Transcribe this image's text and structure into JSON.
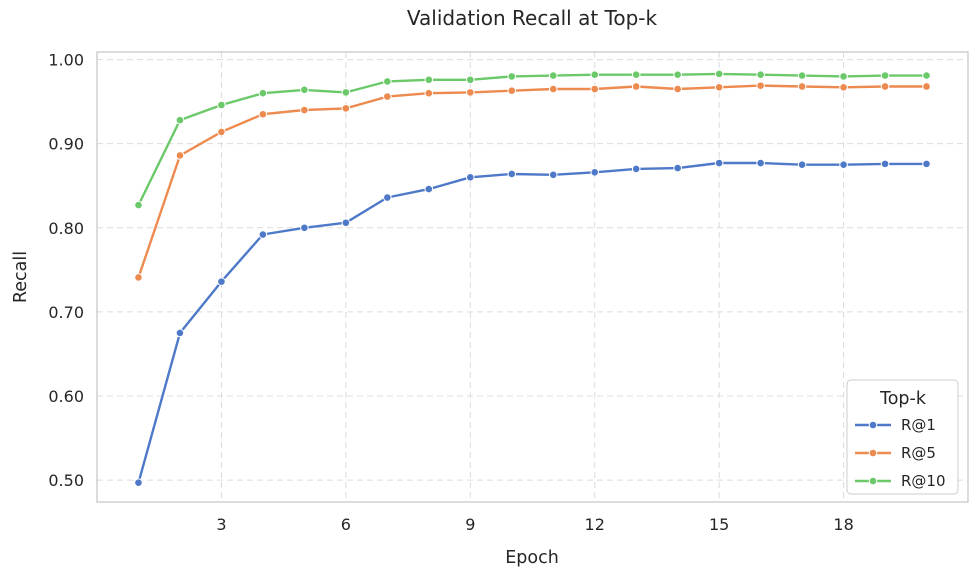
{
  "chart_data": {
    "type": "line",
    "title": "Validation Recall at Top-k",
    "xlabel": "Epoch",
    "ylabel": "Recall",
    "x": [
      1,
      2,
      3,
      4,
      5,
      6,
      7,
      8,
      9,
      10,
      11,
      12,
      13,
      14,
      15,
      16,
      17,
      18,
      19,
      20
    ],
    "xticks": [
      3,
      6,
      9,
      12,
      15,
      18
    ],
    "yticks": [
      0.5,
      0.6,
      0.7,
      0.8,
      0.9,
      1.0
    ],
    "ytick_labels": [
      "0.50",
      "0.60",
      "0.70",
      "0.80",
      "0.90",
      "1.00"
    ],
    "xlim": [
      0.0,
      21.0
    ],
    "ylim": [
      0.474,
      1.009
    ],
    "grid": true,
    "legend": {
      "title": "Top-k",
      "placement": "lower-right"
    },
    "series": [
      {
        "name": "R@1",
        "color": "#4e79c8",
        "values": [
          0.497,
          0.675,
          0.736,
          0.792,
          0.8,
          0.806,
          0.836,
          0.846,
          0.86,
          0.864,
          0.863,
          0.866,
          0.87,
          0.871,
          0.877,
          0.877,
          0.875,
          0.875,
          0.876,
          0.876
        ]
      },
      {
        "name": "R@5",
        "color": "#ed8a4f",
        "values": [
          0.741,
          0.886,
          0.914,
          0.935,
          0.94,
          0.942,
          0.956,
          0.96,
          0.961,
          0.963,
          0.965,
          0.965,
          0.968,
          0.965,
          0.967,
          0.969,
          0.968,
          0.967,
          0.968,
          0.968
        ]
      },
      {
        "name": "R@10",
        "color": "#6bc96a",
        "values": [
          0.827,
          0.928,
          0.946,
          0.96,
          0.964,
          0.961,
          0.974,
          0.976,
          0.976,
          0.98,
          0.981,
          0.982,
          0.982,
          0.982,
          0.983,
          0.982,
          0.981,
          0.98,
          0.981,
          0.981
        ]
      }
    ]
  }
}
